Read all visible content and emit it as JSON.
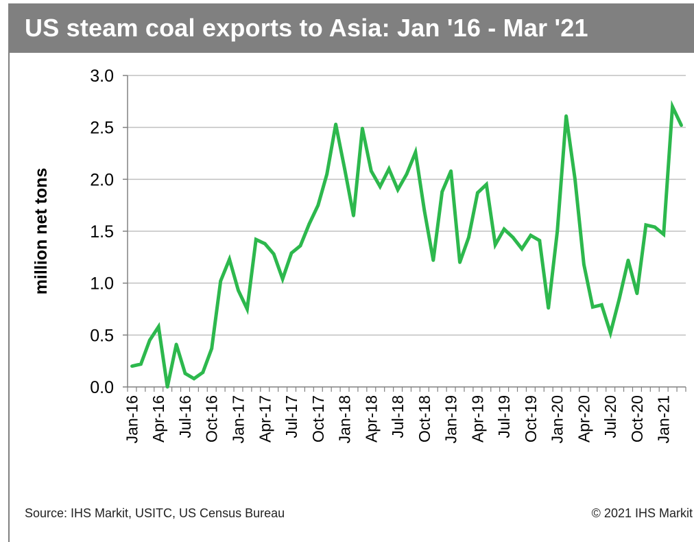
{
  "header": {
    "title": "US steam coal exports to Asia: Jan '16 - Mar '21"
  },
  "footer": {
    "source": "Source: IHS Markit, USITC, US Census Bureau",
    "copyright": "© 2021 IHS Markit"
  },
  "colors": {
    "line": "#2db84d",
    "title_bg": "#808080",
    "grid": "#c0c0c0"
  },
  "chart_data": {
    "type": "line",
    "title": "US steam coal exports to Asia: Jan '16 - Mar '21",
    "xlabel": "",
    "ylabel": "million net tons",
    "ylim": [
      0,
      3.0
    ],
    "yticks": [
      "0.0",
      "0.5",
      "1.0",
      "1.5",
      "2.0",
      "2.5",
      "3.0"
    ],
    "grid": true,
    "legend": "none",
    "x_tick_labels": [
      "Jan-16",
      "Apr-16",
      "Jul-16",
      "Oct-16",
      "Jan-17",
      "Apr-17",
      "Jul-17",
      "Oct-17",
      "Jan-18",
      "Apr-18",
      "Jul-18",
      "Oct-18",
      "Jan-19",
      "Apr-19",
      "Jul-19",
      "Oct-19",
      "Jan-20",
      "Apr-20",
      "Jul-20",
      "Oct-20",
      "Jan-21"
    ],
    "x": [
      "Jan-16",
      "Feb-16",
      "Mar-16",
      "Apr-16",
      "May-16",
      "Jun-16",
      "Jul-16",
      "Aug-16",
      "Sep-16",
      "Oct-16",
      "Nov-16",
      "Dec-16",
      "Jan-17",
      "Feb-17",
      "Mar-17",
      "Apr-17",
      "May-17",
      "Jun-17",
      "Jul-17",
      "Aug-17",
      "Sep-17",
      "Oct-17",
      "Nov-17",
      "Dec-17",
      "Jan-18",
      "Feb-18",
      "Mar-18",
      "Apr-18",
      "May-18",
      "Jun-18",
      "Jul-18",
      "Aug-18",
      "Sep-18",
      "Oct-18",
      "Nov-18",
      "Dec-18",
      "Jan-19",
      "Feb-19",
      "Mar-19",
      "Apr-19",
      "May-19",
      "Jun-19",
      "Jul-19",
      "Aug-19",
      "Sep-19",
      "Oct-19",
      "Nov-19",
      "Dec-19",
      "Jan-20",
      "Feb-20",
      "Mar-20",
      "Apr-20",
      "May-20",
      "Jun-20",
      "Jul-20",
      "Aug-20",
      "Sep-20",
      "Oct-20",
      "Nov-20",
      "Dec-20",
      "Jan-21",
      "Feb-21",
      "Mar-21"
    ],
    "series": [
      {
        "values": [
          0.2,
          0.22,
          0.45,
          0.58,
          0.0,
          0.41,
          0.13,
          0.08,
          0.14,
          0.37,
          1.02,
          1.23,
          0.93,
          0.75,
          1.42,
          1.38,
          1.28,
          1.04,
          1.29,
          1.36,
          1.57,
          1.75,
          2.05,
          2.53,
          2.1,
          1.65,
          2.49,
          2.08,
          1.93,
          2.1,
          1.9,
          2.05,
          2.26,
          1.7,
          1.22,
          1.88,
          2.08,
          1.2,
          1.44,
          1.87,
          1.95,
          1.37,
          1.52,
          1.44,
          1.33,
          1.46,
          1.41,
          0.76,
          1.5,
          2.61,
          2.0,
          1.18,
          0.77,
          0.79,
          0.52,
          0.85,
          1.22,
          0.9,
          1.56,
          1.54,
          1.47,
          2.7,
          2.52
        ]
      }
    ]
  }
}
